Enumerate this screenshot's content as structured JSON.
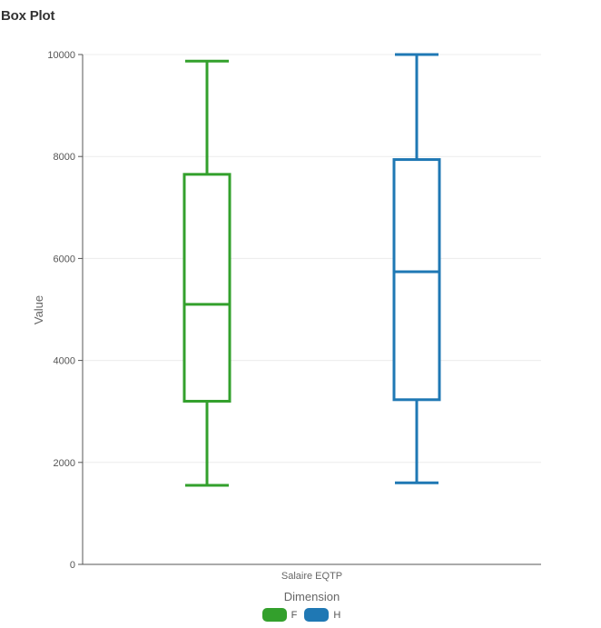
{
  "title": "Box Plot",
  "chart_data": {
    "type": "boxplot",
    "title": "Box Plot",
    "xlabel": "Salaire EQTP",
    "ylabel": "Value",
    "category": "Salaire EQTP",
    "ylim": [
      0,
      10000
    ],
    "yticks": [
      0,
      2000,
      4000,
      6000,
      8000,
      10000
    ],
    "grid": true,
    "legend": {
      "title": "Dimension",
      "position": "bottom"
    },
    "series": [
      {
        "name": "F",
        "color": "#33a02c",
        "min": 1550,
        "q1": 3200,
        "median": 5100,
        "q3": 7650,
        "max": 9870
      },
      {
        "name": "H",
        "color": "#1f78b4",
        "min": 1600,
        "q1": 3230,
        "median": 5740,
        "q3": 7940,
        "max": 10000
      }
    ]
  }
}
